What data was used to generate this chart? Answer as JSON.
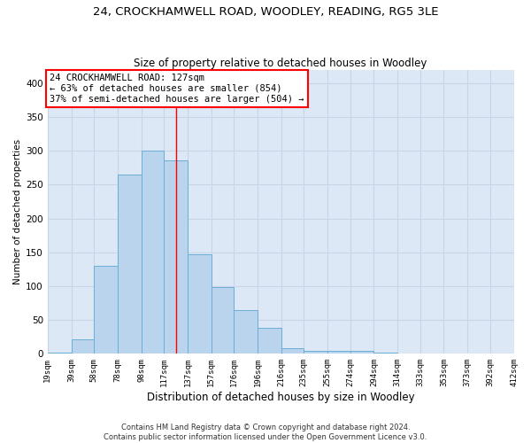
{
  "title1": "24, CROCKHAMWELL ROAD, WOODLEY, READING, RG5 3LE",
  "title2": "Size of property relative to detached houses in Woodley",
  "xlabel": "Distribution of detached houses by size in Woodley",
  "ylabel": "Number of detached properties",
  "footer1": "Contains HM Land Registry data © Crown copyright and database right 2024.",
  "footer2": "Contains public sector information licensed under the Open Government Licence v3.0.",
  "annotation_line1": "24 CROCKHAMWELL ROAD: 127sqm",
  "annotation_line2": "← 63% of detached houses are smaller (854)",
  "annotation_line3": "37% of semi-detached houses are larger (504) →",
  "property_size": 127,
  "bin_edges": [
    19,
    39,
    58,
    78,
    98,
    117,
    137,
    157,
    176,
    196,
    216,
    235,
    255,
    274,
    294,
    314,
    333,
    353,
    373,
    392,
    412
  ],
  "bar_heights": [
    2,
    21,
    130,
    265,
    300,
    286,
    147,
    99,
    65,
    38,
    8,
    5,
    5,
    5,
    2,
    0,
    0,
    0,
    1,
    0
  ],
  "bar_color": "#bad4ed",
  "bar_edge_color": "#6baed6",
  "vline_color": "red",
  "grid_color": "#c8d4e8",
  "background_color": "#dce8f5",
  "annotation_box_color": "white",
  "annotation_box_edge": "red",
  "ylim": [
    0,
    420
  ],
  "yticks": [
    0,
    50,
    100,
    150,
    200,
    250,
    300,
    350,
    400
  ],
  "title1_fontsize": 9.5,
  "title2_fontsize": 8.5,
  "xlabel_fontsize": 8.5,
  "ylabel_fontsize": 7.5,
  "xtick_fontsize": 6.5,
  "ytick_fontsize": 7.5,
  "footer_fontsize": 6.0,
  "ann_fontsize": 7.5
}
